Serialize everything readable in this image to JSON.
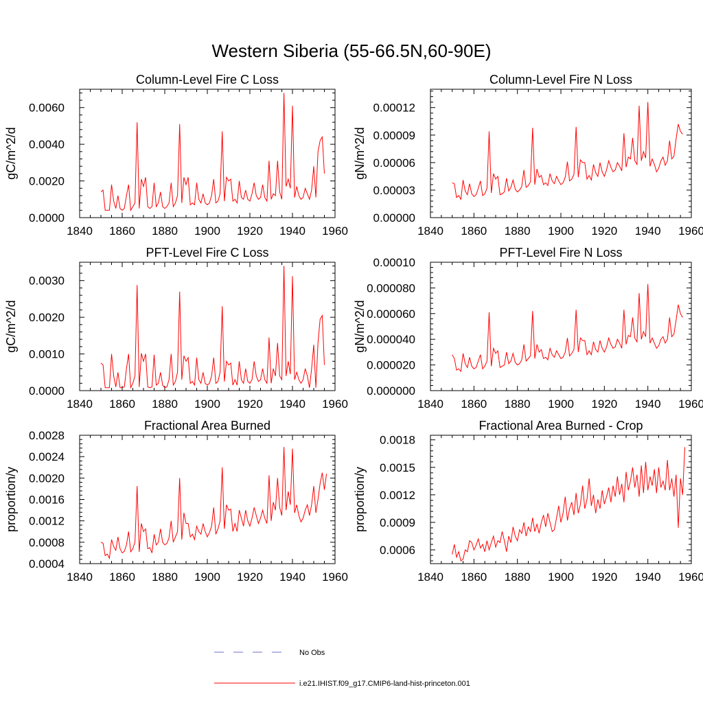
{
  "figure": {
    "title": "Western Siberia (55-66.5N,60-90E)",
    "line_color": "#ff0000",
    "obs_color": "#6f6fcf"
  },
  "legend": {
    "entries": [
      {
        "label": "No Obs",
        "style": "dashed",
        "color": "#6f6fcf"
      },
      {
        "label": "i.e21.IHIST.f09_g17.CMIP6-land-hist-princeton.001",
        "style": "solid",
        "color": "#ff0000"
      }
    ]
  },
  "chart_data": [
    {
      "type": "line",
      "title": "Column-Level Fire C Loss",
      "xlabel": "",
      "ylabel": "gC/m^2/d",
      "xlim": [
        1840,
        1960
      ],
      "ylim": [
        0,
        0.007
      ],
      "xticks": [
        1840,
        1860,
        1880,
        1900,
        1920,
        1940,
        1960
      ],
      "xtick_labels": [
        "1840",
        "1860",
        "1880",
        "1900",
        "1920",
        "1940",
        "1960"
      ],
      "yticks": [
        0,
        0.002,
        0.004,
        0.006
      ],
      "ytick_labels": [
        "0.0000",
        "0.0020",
        "0.0040",
        "0.0060"
      ],
      "x_start": 1850,
      "series": [
        {
          "values": [
            0.0014,
            0.0015,
            0.0004,
            0.0004,
            0.0004,
            0.0018,
            0.0009,
            0.0005,
            0.0012,
            0.0005,
            0.0004,
            0.0005,
            0.0012,
            0.0018,
            0.0004,
            0.0006,
            0.0008,
            0.0052,
            0.0005,
            0.0021,
            0.0017,
            0.0022,
            0.0006,
            0.0005,
            0.0006,
            0.0019,
            0.0006,
            0.0008,
            0.0014,
            0.0006,
            0.0005,
            0.0006,
            0.0008,
            0.0019,
            0.0006,
            0.0008,
            0.0012,
            0.0051,
            0.0008,
            0.0022,
            0.0018,
            0.0022,
            0.0007,
            0.0008,
            0.0007,
            0.0019,
            0.001,
            0.0008,
            0.0013,
            0.0008,
            0.0007,
            0.0008,
            0.0012,
            0.0021,
            0.0008,
            0.0009,
            0.0013,
            0.0047,
            0.0009,
            0.0022,
            0.002,
            0.0021,
            0.0009,
            0.001,
            0.0008,
            0.002,
            0.0011,
            0.001,
            0.0015,
            0.001,
            0.0009,
            0.0013,
            0.0019,
            0.0012,
            0.001,
            0.0011,
            0.0018,
            0.0011,
            0.0009,
            0.0031,
            0.001,
            0.0013,
            0.0012,
            0.0031,
            0.0014,
            0.001,
            0.0068,
            0.0017,
            0.0021,
            0.0016,
            0.0061,
            0.0011,
            0.0017,
            0.0012,
            0.001,
            0.0011,
            0.0016,
            0.0013,
            0.001,
            0.0015,
            0.0028,
            0.0011,
            0.0036,
            0.0042,
            0.0044,
            0.0024
          ]
        }
      ]
    },
    {
      "type": "line",
      "title": "Column-Level Fire N Loss",
      "xlabel": "",
      "ylabel": "gN/m^2/d",
      "xlim": [
        1840,
        1960
      ],
      "ylim": [
        0,
        0.00014
      ],
      "xticks": [
        1840,
        1860,
        1880,
        1900,
        1920,
        1940,
        1960
      ],
      "xtick_labels": [
        "1840",
        "1860",
        "1880",
        "1900",
        "1920",
        "1940",
        "1960"
      ],
      "yticks": [
        0,
        3e-05,
        6e-05,
        9e-05,
        0.00012
      ],
      "ytick_labels": [
        "0.00000",
        "0.00003",
        "0.00006",
        "0.00009",
        "0.00012"
      ],
      "x_start": 1850,
      "series": [
        {
          "values": [
            3.8e-05,
            3.7e-05,
            2.2e-05,
            2.4e-05,
            2e-05,
            4.1e-05,
            2.9e-05,
            2.5e-05,
            3.7e-05,
            2.6e-05,
            2.3e-05,
            2.5e-05,
            3.2e-05,
            4e-05,
            2.4e-05,
            2.6e-05,
            3.2e-05,
            9.4e-05,
            2.7e-05,
            4.8e-05,
            4.2e-05,
            4.5e-05,
            2.5e-05,
            2.6e-05,
            2.8e-05,
            4.3e-05,
            2.9e-05,
            3.3e-05,
            4.1e-05,
            3.1e-05,
            2.8e-05,
            3e-05,
            3.4e-05,
            5.2e-05,
            3.3e-05,
            3.5e-05,
            3.9e-05,
            9.8e-05,
            3.6e-05,
            5.3e-05,
            4.4e-05,
            4.6e-05,
            3.6e-05,
            3.8e-05,
            3.5e-05,
            4.8e-05,
            4e-05,
            3.7e-05,
            4.5e-05,
            4e-05,
            3.6e-05,
            3.8e-05,
            4.4e-05,
            6.1e-05,
            4e-05,
            4.2e-05,
            4.7e-05,
            9.9e-05,
            4.4e-05,
            6.3e-05,
            6e-05,
            6e-05,
            4.2e-05,
            4.6e-05,
            4.1e-05,
            5.8e-05,
            4.9e-05,
            4.5e-05,
            6e-05,
            5e-05,
            4.5e-05,
            5.2e-05,
            6.2e-05,
            5.5e-05,
            5e-05,
            5.2e-05,
            6e-05,
            5.6e-05,
            5.1e-05,
            9.2e-05,
            5.5e-05,
            6.6e-05,
            6.4e-05,
            8.7e-05,
            6.2e-05,
            5.8e-05,
            0.000122,
            6.2e-05,
            7.2e-05,
            6.5e-05,
            0.000126,
            5.6e-05,
            6.4e-05,
            5.8e-05,
            5e-05,
            5.4e-05,
            6.2e-05,
            6.6e-05,
            5.7e-05,
            6.2e-05,
            8.4e-05,
            6.4e-05,
            6.7e-05,
            8.6e-05,
            0.000102,
            9.4e-05,
            9.1e-05
          ]
        }
      ]
    },
    {
      "type": "line",
      "title": "PFT-Level Fire C Loss",
      "xlabel": "",
      "ylabel": "gC/m^2/d",
      "xlim": [
        1840,
        1960
      ],
      "ylim": [
        0,
        0.0035
      ],
      "xticks": [
        1840,
        1860,
        1880,
        1900,
        1920,
        1940,
        1960
      ],
      "xtick_labels": [
        "1840",
        "1860",
        "1880",
        "1900",
        "1920",
        "1940",
        "1960"
      ],
      "yticks": [
        0,
        0.001,
        0.002,
        0.003
      ],
      "ytick_labels": [
        "0.0000",
        "0.0010",
        "0.0020",
        "0.0030"
      ],
      "x_start": 1850,
      "series": [
        {
          "values": [
            0.00075,
            0.0007,
            8e-05,
            8e-05,
            8e-05,
            0.001,
            0.0004,
            0.0001,
            0.0005,
            8e-05,
            8e-05,
            0.0001,
            0.0006,
            0.001,
            8e-05,
            0.0002,
            0.0004,
            0.00288,
            0.0001,
            0.00102,
            0.0008,
            0.001,
            0.0001,
            8e-05,
            0.0001,
            0.00098,
            0.00015,
            0.0002,
            0.0005,
            0.00015,
            8e-05,
            0.0001,
            0.0003,
            0.001,
            0.00015,
            0.00025,
            0.0005,
            0.0027,
            0.0003,
            0.00095,
            0.0008,
            0.0009,
            0.0002,
            0.00025,
            0.00015,
            0.0009,
            0.0003,
            0.0002,
            0.0005,
            0.0002,
            0.00015,
            0.0002,
            0.0004,
            0.0009,
            0.0002,
            0.00025,
            0.0005,
            0.0023,
            0.00025,
            0.0008,
            0.0007,
            0.00075,
            0.00015,
            0.0003,
            0.00015,
            0.0008,
            0.0003,
            0.0002,
            0.0006,
            0.00025,
            0.0002,
            0.0003,
            0.0008,
            0.0004,
            0.00025,
            0.0003,
            0.0006,
            0.0003,
            0.0002,
            0.00145,
            0.0002,
            0.0006,
            0.0004,
            0.0013,
            0.0004,
            0.0003,
            0.0034,
            0.0004,
            0.0008,
            0.00045,
            0.00312,
            0.0003,
            0.0005,
            0.0003,
            0.0002,
            0.0003,
            0.0006,
            0.0004,
            8e-05,
            0.0006,
            0.00125,
            8e-05,
            0.0013,
            0.00195,
            0.00205,
            0.0007
          ]
        }
      ]
    },
    {
      "type": "line",
      "title": "PFT-Level Fire N Loss",
      "xlabel": "",
      "ylabel": "gN/m^2/d",
      "xlim": [
        1840,
        1960
      ],
      "ylim": [
        0,
        0.0001
      ],
      "xticks": [
        1840,
        1860,
        1880,
        1900,
        1920,
        1940,
        1960
      ],
      "xtick_labels": [
        "1840",
        "1860",
        "1880",
        "1900",
        "1920",
        "1940",
        "1960"
      ],
      "yticks": [
        0,
        2e-05,
        4e-05,
        6e-05,
        8e-05,
        0.0001
      ],
      "ytick_labels": [
        "0.000000",
        "0.000020",
        "0.000040",
        "0.000060",
        "0.000080",
        "0.00010"
      ],
      "x_start": 1850,
      "series": [
        {
          "values": [
            2.8e-05,
            2.5e-05,
            1.6e-05,
            1.7e-05,
            1.5e-05,
            2.9e-05,
            2.1e-05,
            1.8e-05,
            2.6e-05,
            1.9e-05,
            1.7e-05,
            1.8e-05,
            2.3e-05,
            2.8e-05,
            1.7e-05,
            1.9e-05,
            2.3e-05,
            6.1e-05,
            1.9e-05,
            3.3e-05,
            2.9e-05,
            3.1e-05,
            1.8e-05,
            1.9e-05,
            2e-05,
            3e-05,
            2.1e-05,
            2.3e-05,
            2.9e-05,
            2.2e-05,
            2e-05,
            2.1e-05,
            2.4e-05,
            3.6e-05,
            2.3e-05,
            2.5e-05,
            2.7e-05,
            6.2e-05,
            2.5e-05,
            3.6e-05,
            3e-05,
            3.2e-05,
            2.5e-05,
            2.6e-05,
            2.4e-05,
            3.3e-05,
            2.8e-05,
            2.6e-05,
            3.1e-05,
            2.8e-05,
            2.5e-05,
            2.6e-05,
            3e-05,
            4.1e-05,
            2.7e-05,
            2.9e-05,
            3.2e-05,
            6.3e-05,
            3e-05,
            4.1e-05,
            3.9e-05,
            3.9e-05,
            2.8e-05,
            3.1e-05,
            2.8e-05,
            3.8e-05,
            3.2e-05,
            3e-05,
            3.9e-05,
            3.3e-05,
            3e-05,
            3.4e-05,
            4.1e-05,
            3.6e-05,
            3.3e-05,
            3.4e-05,
            4e-05,
            3.7e-05,
            3.3e-05,
            6.3e-05,
            3.6e-05,
            4.3e-05,
            4.2e-05,
            5.7e-05,
            4.1e-05,
            3.8e-05,
            7.6e-05,
            4e-05,
            4.6e-05,
            4.2e-05,
            8.3e-05,
            3.7e-05,
            4.1e-05,
            3.7e-05,
            3.3e-05,
            3.5e-05,
            4e-05,
            4.2e-05,
            3.7e-05,
            4e-05,
            5.7e-05,
            4.2e-05,
            4.4e-05,
            5.5e-05,
            6.7e-05,
            6e-05,
            5.7e-05
          ]
        }
      ]
    },
    {
      "type": "line",
      "title": "Fractional Area Burned",
      "xlabel": "",
      "ylabel": "proportion/y",
      "xlim": [
        1840,
        1960
      ],
      "ylim": [
        0.0004,
        0.0028
      ],
      "xticks": [
        1840,
        1860,
        1880,
        1900,
        1920,
        1940,
        1960
      ],
      "xtick_labels": [
        "1840",
        "1860",
        "1880",
        "1900",
        "1920",
        "1940",
        "1960"
      ],
      "yticks": [
        0.0004,
        0.0008,
        0.0012,
        0.0016,
        0.002,
        0.0024,
        0.0028
      ],
      "ytick_labels": [
        "0.0004",
        "0.0008",
        "0.0012",
        "0.0016",
        "0.0020",
        "0.0024",
        "0.0028"
      ],
      "x_start": 1850,
      "series": [
        {
          "values": [
            0.0008,
            0.00078,
            0.00055,
            0.00058,
            0.0005,
            0.00085,
            0.00072,
            0.00065,
            0.0009,
            0.00068,
            0.0006,
            0.00063,
            0.00075,
            0.001,
            0.00062,
            0.00068,
            0.0008,
            0.00185,
            0.00062,
            0.00115,
            0.001,
            0.00105,
            0.00068,
            0.0007,
            0.0006,
            0.00095,
            0.00075,
            0.0008,
            0.00105,
            0.0008,
            0.00075,
            0.00078,
            0.00088,
            0.0012,
            0.0008,
            0.0009,
            0.001,
            0.002,
            0.00085,
            0.00135,
            0.00115,
            0.00115,
            0.0009,
            0.00095,
            0.00085,
            0.0011,
            0.001,
            0.00095,
            0.00115,
            0.001,
            0.0009,
            0.00098,
            0.0011,
            0.00145,
            0.00095,
            0.00105,
            0.0012,
            0.0022,
            0.00105,
            0.0015,
            0.0014,
            0.00142,
            0.001,
            0.00115,
            0.001,
            0.0014,
            0.00125,
            0.0011,
            0.0014,
            0.0012,
            0.0011,
            0.00125,
            0.00145,
            0.0013,
            0.00115,
            0.00125,
            0.0014,
            0.00125,
            0.00115,
            0.00205,
            0.0012,
            0.00155,
            0.0014,
            0.002,
            0.00145,
            0.0013,
            0.00258,
            0.0014,
            0.00175,
            0.0015,
            0.00255,
            0.00135,
            0.0015,
            0.0013,
            0.00118,
            0.00125,
            0.0014,
            0.0015,
            0.0013,
            0.0015,
            0.00185,
            0.00135,
            0.0016,
            0.0019,
            0.0021,
            0.00178,
            0.00208
          ]
        }
      ]
    },
    {
      "type": "line",
      "title": "Fractional Area Burned - Crop",
      "xlabel": "",
      "ylabel": "proportion/y",
      "xlim": [
        1840,
        1960
      ],
      "ylim": [
        0.00045,
        0.00185
      ],
      "xticks": [
        1840,
        1860,
        1880,
        1900,
        1920,
        1940,
        1960
      ],
      "xtick_labels": [
        "1840",
        "1860",
        "1880",
        "1900",
        "1920",
        "1940",
        "1960"
      ],
      "yticks": [
        0.0006,
        0.0009,
        0.0012,
        0.0015,
        0.0018
      ],
      "ytick_labels": [
        "0.0006",
        "0.0009",
        "0.0012",
        "0.0015",
        "0.0018"
      ],
      "x_start": 1850,
      "series": [
        {
          "values": [
            0.00055,
            0.00066,
            0.00052,
            0.00058,
            0.00048,
            0.0005,
            0.0006,
            0.00058,
            0.0007,
            0.00068,
            0.0006,
            0.00065,
            0.00072,
            0.00062,
            0.00066,
            0.00058,
            0.0007,
            0.0006,
            0.00068,
            0.00075,
            0.00063,
            0.0007,
            0.00068,
            0.0008,
            0.0007,
            0.00058,
            0.00075,
            0.00068,
            0.00085,
            0.00075,
            0.0007,
            0.00082,
            0.00078,
            0.0009,
            0.00075,
            0.00085,
            0.0008,
            0.00095,
            0.0008,
            0.00088,
            0.00078,
            0.0009,
            0.00098,
            0.00085,
            0.001,
            0.0009,
            0.0008,
            0.00082,
            0.00095,
            0.00108,
            0.0009,
            0.001,
            0.00118,
            0.00092,
            0.00105,
            0.00112,
            0.00098,
            0.00122,
            0.001,
            0.0011,
            0.0013,
            0.00105,
            0.00115,
            0.00138,
            0.00108,
            0.0012,
            0.001,
            0.00115,
            0.00105,
            0.00125,
            0.0011,
            0.00118,
            0.00128,
            0.00112,
            0.0013,
            0.00118,
            0.0014,
            0.0012,
            0.00132,
            0.00112,
            0.00145,
            0.00125,
            0.00135,
            0.0015,
            0.00128,
            0.00142,
            0.00118,
            0.00152,
            0.00122,
            0.00156,
            0.00125,
            0.0014,
            0.0013,
            0.00148,
            0.00122,
            0.0015,
            0.00128,
            0.00135,
            0.00125,
            0.00158,
            0.00125,
            0.00138,
            0.00118,
            0.00142,
            0.00084,
            0.00138,
            0.0012,
            0.00172
          ]
        }
      ]
    }
  ]
}
